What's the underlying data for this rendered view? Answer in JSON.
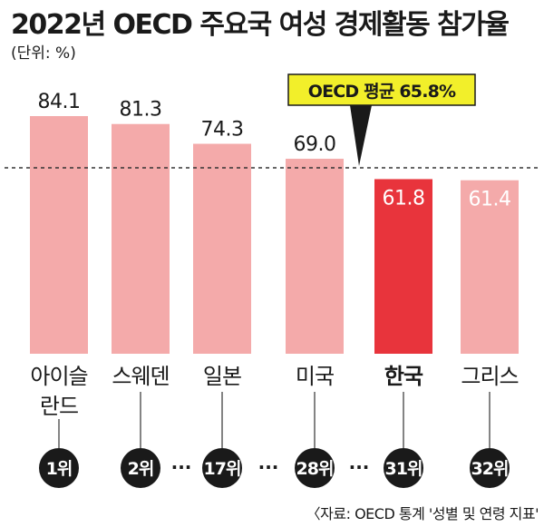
{
  "title": "2022년 OECD 주요국 여성 경제활동 참가율",
  "unit": "(단위: %)",
  "source": "〈자료: OECD 통계 '성별 및 연령 지표'",
  "colors": {
    "bar": "#f4aaaa",
    "highlight": "#e8343c",
    "avg_box": "#f2ef2a",
    "badge": "#1a1a1a",
    "text": "#1a1a1a"
  },
  "chart_data": {
    "type": "bar",
    "title": "2022년 OECD 주요국 여성 경제활동 참가율",
    "ylabel": "(단위: %)",
    "categories": [
      "아이슬란드",
      "스웨덴",
      "일본",
      "미국",
      "한국",
      "그리스"
    ],
    "category_lines": [
      [
        "아이슬",
        "란드"
      ],
      [
        "스웨덴"
      ],
      [
        "일본"
      ],
      [
        "미국"
      ],
      [
        "한국"
      ],
      [
        "그리스"
      ]
    ],
    "values": [
      84.1,
      81.3,
      74.3,
      69.0,
      61.8,
      61.4
    ],
    "value_labels": [
      "84.1",
      "81.3",
      "74.3",
      "69.0",
      "61.8",
      "61.4"
    ],
    "ranks": [
      "1위",
      "2위",
      "17위",
      "28위",
      "31위",
      "32위"
    ],
    "highlight_index": 4,
    "average": {
      "value": 65.8,
      "label": "OECD 평균 65.8%"
    },
    "gap_marker": "···",
    "ylim": [
      0,
      84.1
    ]
  }
}
